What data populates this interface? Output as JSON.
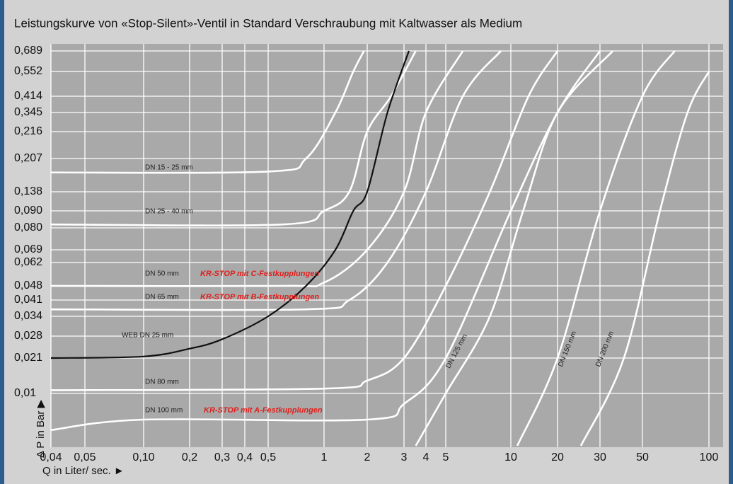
{
  "chart_data": {
    "type": "line",
    "title": "Leistungskurve von «Stop-Silent»-Ventil in Standard  Verschraubung mit Kaltwasser als Medium",
    "xlabel": "Q in Liter/ sec. ►",
    "ylabel": "Δ P in Bar ▶",
    "log_x": true,
    "grid": true,
    "xlim": [
      0.04,
      100
    ],
    "ylim": [
      0,
      0.689
    ],
    "xticks": [
      {
        "value": 0.04,
        "label": "0,04"
      },
      {
        "value": 0.05,
        "label": "0,05"
      },
      {
        "value": 0.1,
        "label": "0,10"
      },
      {
        "value": 0.2,
        "label": "0,2"
      },
      {
        "value": 0.3,
        "label": "0,3"
      },
      {
        "value": 0.4,
        "label": "0,4"
      },
      {
        "value": 0.5,
        "label": "0,5"
      },
      1,
      2,
      3,
      4,
      5,
      10,
      20,
      30,
      50,
      100
    ],
    "yticks": [
      {
        "value": 0.689,
        "label": "0,689"
      },
      {
        "value": 0.552,
        "label": "0,552"
      },
      {
        "value": 0.414,
        "label": "0,414"
      },
      {
        "value": 0.345,
        "label": "0,345"
      },
      {
        "value": 0.216,
        "label": "0,216"
      },
      {
        "value": 0.207,
        "label": "0,207"
      },
      {
        "value": 0.138,
        "label": "0,138"
      },
      {
        "value": 0.09,
        "label": "0,090"
      },
      {
        "value": 0.08,
        "label": "0,080"
      },
      {
        "value": 0.069,
        "label": "0,069"
      },
      {
        "value": 0.062,
        "label": "0,062"
      },
      {
        "value": 0.048,
        "label": "0,048"
      },
      {
        "value": 0.041,
        "label": "0,041"
      },
      {
        "value": 0.034,
        "label": "0,034"
      },
      {
        "value": 0.028,
        "label": "0,028"
      },
      {
        "value": 0.021,
        "label": "0,021"
      },
      {
        "value": 0.01,
        "label": "0,01"
      }
    ],
    "series": [
      {
        "name": "DN 15 - 25 mm",
        "color": "#ffffff",
        "x": [
          0.04,
          0.5,
          0.8,
          1.2,
          1.6,
          1.9
        ],
        "values": [
          0.178,
          0.18,
          0.207,
          0.345,
          0.552,
          0.689
        ]
      },
      {
        "name": "DN 25 - 40 mm",
        "color": "#ffffff",
        "x": [
          0.04,
          0.6,
          1,
          1.5,
          2,
          2.6,
          3.5
        ],
        "values": [
          0.082,
          0.082,
          0.09,
          0.138,
          0.216,
          0.414,
          0.689
        ]
      },
      {
        "name": "DN 50 mm",
        "color": "#ffffff",
        "x": [
          0.04,
          0.6,
          1,
          2,
          3,
          4,
          6
        ],
        "values": [
          0.048,
          0.048,
          0.05,
          0.069,
          0.138,
          0.345,
          0.689
        ]
      },
      {
        "name": "DN 65 mm",
        "color": "#ffffff",
        "x": [
          0.04,
          0.8,
          1.5,
          2.5,
          4,
          6,
          9
        ],
        "values": [
          0.037,
          0.037,
          0.041,
          0.062,
          0.138,
          0.414,
          0.689
        ]
      },
      {
        "name": "WEB DN 25 mm",
        "color": "#111111",
        "x": [
          0.04,
          0.1,
          0.2,
          0.3,
          0.5,
          0.8,
          1.2,
          1.6,
          2,
          2.5,
          3.2
        ],
        "values": [
          0.021,
          0.0215,
          0.024,
          0.027,
          0.034,
          0.048,
          0.069,
          0.09,
          0.138,
          0.345,
          0.689
        ]
      },
      {
        "name": "DN 80 mm",
        "color": "#ffffff",
        "x": [
          0.04,
          1,
          2,
          3,
          5,
          8,
          13,
          20
        ],
        "values": [
          0.011,
          0.0115,
          0.014,
          0.021,
          0.048,
          0.138,
          0.414,
          0.689
        ]
      },
      {
        "name": "DN 100 mm",
        "color": "#ffffff",
        "x": [
          0.04,
          0.1,
          2,
          3,
          5,
          10,
          20,
          30
        ],
        "values": [
          0.003,
          0.005,
          0.005,
          0.008,
          0.021,
          0.09,
          0.345,
          0.689
        ]
      },
      {
        "name": "DN 125 mm",
        "color": "#ffffff",
        "x": [
          3.5,
          5,
          8,
          12,
          20,
          35
        ],
        "values": [
          0,
          0.01,
          0.034,
          0.09,
          0.345,
          0.689
        ]
      },
      {
        "name": "DN 150 mm",
        "color": "#ffffff",
        "x": [
          11,
          20,
          30,
          50,
          70
        ],
        "values": [
          0,
          0.021,
          0.09,
          0.414,
          0.689
        ]
      },
      {
        "name": "DN 200 mm",
        "color": "#ffffff",
        "x": [
          25,
          40,
          60,
          80,
          100
        ],
        "values": [
          0,
          0.021,
          0.09,
          0.345,
          0.552
        ]
      }
    ],
    "annotations": [
      {
        "text": "KR-STOP mit C-Festkupplungen",
        "color": "#e0201c"
      },
      {
        "text": "KR-STOP mit B-Festkupplungen",
        "color": "#e0201c"
      },
      {
        "text": "KR-STOP mit A-Festkupplungen",
        "color": "#e0201c"
      }
    ]
  }
}
